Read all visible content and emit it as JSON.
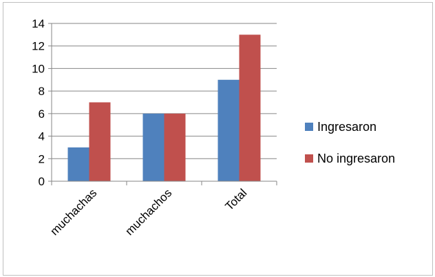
{
  "chart_data": {
    "type": "bar",
    "categories": [
      "muchachas",
      "muchachos",
      "Total"
    ],
    "series": [
      {
        "name": "Ingresaron",
        "values": [
          3,
          6,
          9
        ],
        "color": "#4f81bd"
      },
      {
        "name": "No ingresaron",
        "values": [
          7,
          6,
          13
        ],
        "color": "#c0504d"
      }
    ],
    "ylim": [
      0,
      14
    ],
    "yticks": [
      0,
      2,
      4,
      6,
      8,
      10,
      12,
      14
    ],
    "grid": true,
    "legend": "right"
  }
}
